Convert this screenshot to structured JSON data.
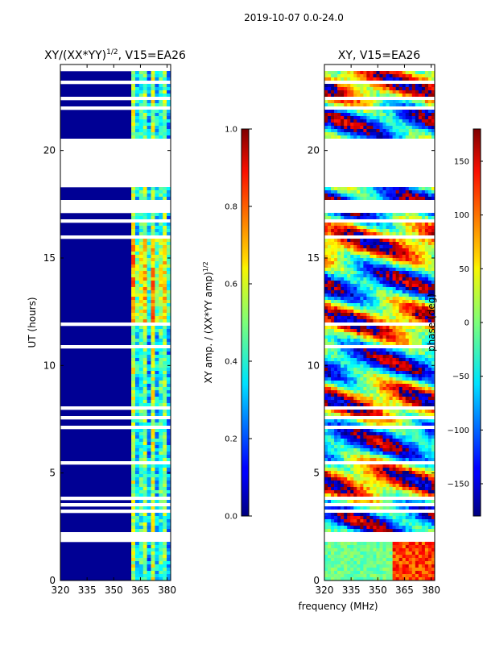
{
  "suptitle": "2019-10-07 0.0-24.0",
  "xlabel": "frequency (MHz)",
  "chart_data": [
    {
      "type": "heatmap",
      "title_main": "XY/(XX*YY)",
      "title_sup": "1/2",
      "title_tail": ", V15=EA26",
      "ylabel": "UT (hours)",
      "xlim": [
        320,
        382
      ],
      "ylim": [
        0,
        24
      ],
      "xticks": [
        "320",
        "335",
        "350",
        "365",
        "380"
      ],
      "xtick_values": [
        320,
        335,
        350,
        365,
        380
      ],
      "yticks": [
        "0",
        "5",
        "10",
        "15",
        "20"
      ],
      "ytick_values": [
        0,
        5,
        10,
        15,
        20
      ],
      "colorbar": {
        "label": "XY amp. / (XX*YY amp)",
        "label_sup": "1/2",
        "range": [
          0.0,
          1.0
        ],
        "ticks": [
          "0.0",
          "0.2",
          "0.4",
          "0.6",
          "0.8",
          "1.0"
        ],
        "tick_values": [
          0.0,
          0.2,
          0.4,
          0.6,
          0.8,
          1.0
        ],
        "colormap": "jet"
      },
      "background_value": 0.02,
      "active_band_mhz": [
        360,
        380
      ],
      "flagged_hours": [
        [
          18.3,
          20.6
        ],
        [
          17.2,
          17.5
        ],
        [
          1.8,
          2.3
        ]
      ]
    },
    {
      "type": "heatmap",
      "title_main": "XY, V15=EA26",
      "ylabel": "",
      "xlim": [
        320,
        382
      ],
      "ylim": [
        0,
        24
      ],
      "xticks": [
        "320",
        "335",
        "350",
        "365",
        "380"
      ],
      "xtick_values": [
        320,
        335,
        350,
        365,
        380
      ],
      "yticks": [
        "0",
        "5",
        "10",
        "15",
        "20"
      ],
      "ytick_values": [
        0,
        5,
        10,
        15,
        20
      ],
      "colorbar": {
        "label": "phase (deg)",
        "range": [
          -180,
          180
        ],
        "ticks": [
          "−150",
          "−100",
          "−50",
          "0",
          "50",
          "100",
          "150"
        ],
        "tick_values": [
          -150,
          -100,
          -50,
          0,
          50,
          100,
          150
        ],
        "colormap": "jet"
      },
      "flagged_hours": [
        [
          18.3,
          20.6
        ],
        [
          17.2,
          17.5
        ],
        [
          1.8,
          2.3
        ]
      ]
    }
  ]
}
